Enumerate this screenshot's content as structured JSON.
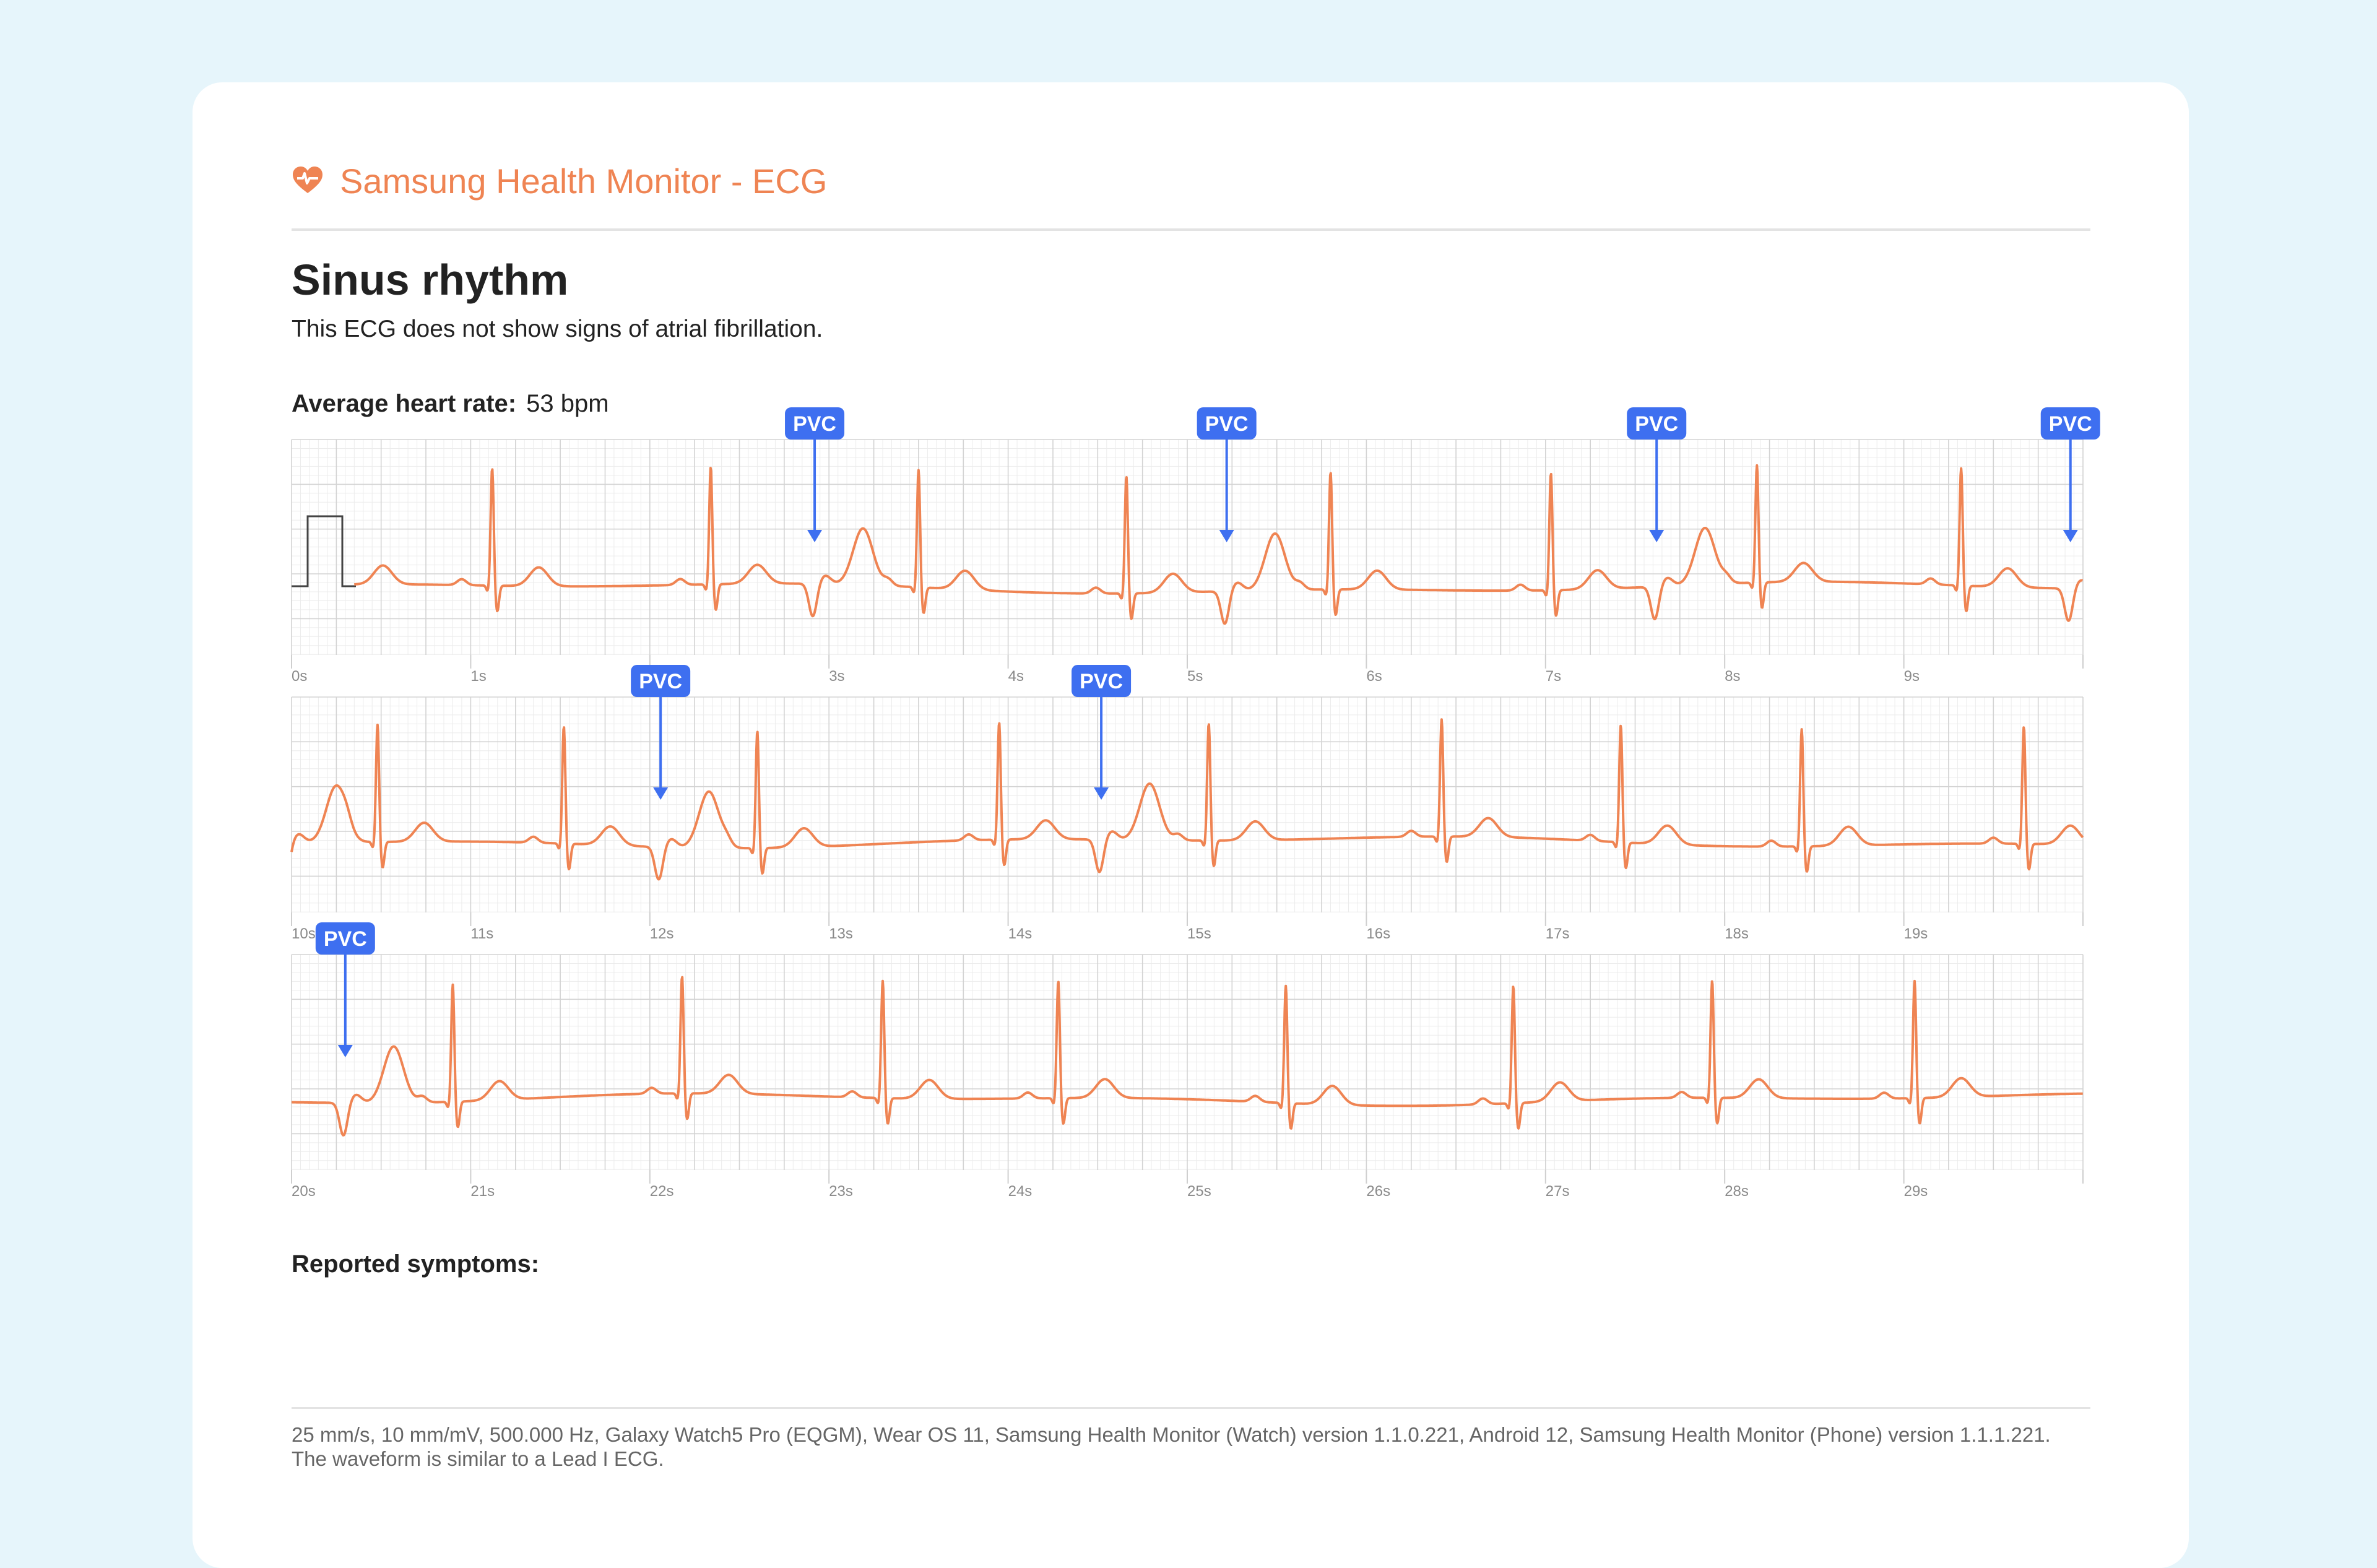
{
  "app": {
    "title": "Samsung Health Monitor - ECG",
    "icon": "heart-ecg-icon",
    "accent_color": "#ef8453"
  },
  "result": {
    "title": "Sinus rhythm",
    "description": "This ECG does not show signs of atrial fibrillation."
  },
  "heart_rate": {
    "label": "Average heart rate:",
    "value": "53 bpm"
  },
  "symptoms": {
    "label": "Reported symptoms:"
  },
  "footer": {
    "line1": "25 mm/s, 10 mm/mV, 500.000 Hz, Galaxy Watch5 Pro (EQGM), Wear OS 11, Samsung Health Monitor (Watch) version 1.1.0.221, Android 12, Samsung Health Monitor (Phone) version 1.1.1.221.",
    "line2": "The waveform is similar to a Lead I ECG."
  },
  "chart_data": {
    "type": "line",
    "series_color": "#ef8453",
    "marker_color": "#3e6ff0",
    "grid": true,
    "rows": [
      {
        "start": 0,
        "end": 10,
        "tick_labels": [
          "0s",
          "1s",
          "2s",
          "3s",
          "4s",
          "5s",
          "6s",
          "7s",
          "8s",
          "9s"
        ],
        "beats": [
          [
            0.25,
            0
          ],
          [
            1.12,
            0
          ],
          [
            2.34,
            0
          ],
          [
            2.92,
            1
          ],
          [
            3.5,
            0
          ],
          [
            4.66,
            0
          ],
          [
            5.22,
            1
          ],
          [
            5.8,
            0
          ],
          [
            7.03,
            0
          ],
          [
            7.62,
            1
          ],
          [
            8.18,
            0
          ],
          [
            9.32,
            0
          ],
          [
            9.93,
            1
          ]
        ],
        "calibration_pulse": true
      },
      {
        "start": 10,
        "end": 20,
        "tick_labels": [
          "10s",
          "11s",
          "12s",
          "13s",
          "14s",
          "15s",
          "16s",
          "17s",
          "18s",
          "19s"
        ],
        "beats": [
          [
            9.98,
            1
          ],
          [
            10.48,
            0
          ],
          [
            11.52,
            0
          ],
          [
            12.06,
            1
          ],
          [
            12.6,
            0
          ],
          [
            13.95,
            0
          ],
          [
            14.52,
            1
          ],
          [
            15.12,
            0
          ],
          [
            16.42,
            0
          ],
          [
            17.42,
            0
          ],
          [
            18.43,
            0
          ],
          [
            19.67,
            0
          ]
        ],
        "calibration_pulse": false
      },
      {
        "start": 20,
        "end": 30,
        "tick_labels": [
          "20s",
          "21s",
          "22s",
          "23s",
          "24s",
          "25s",
          "26s",
          "27s",
          "28s",
          "29s"
        ],
        "beats": [
          [
            20.3,
            1
          ],
          [
            20.9,
            0
          ],
          [
            22.18,
            0
          ],
          [
            23.3,
            0
          ],
          [
            24.28,
            0
          ],
          [
            25.55,
            0
          ],
          [
            26.82,
            0
          ],
          [
            27.93,
            0
          ],
          [
            29.06,
            0
          ]
        ],
        "calibration_pulse": false
      }
    ],
    "pvc_label": "PVC",
    "pvc_markers": [
      2.92,
      5.22,
      7.62,
      9.93,
      12.06,
      14.52,
      20.3
    ]
  }
}
